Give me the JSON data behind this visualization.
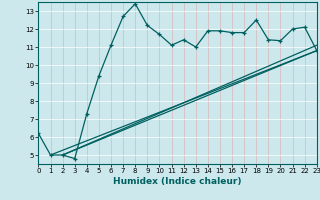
{
  "xlabel": "Humidex (Indice chaleur)",
  "bg_color": "#cce8ed",
  "line_color": "#006060",
  "grid_color": "#b0d8e0",
  "x_min": 0,
  "x_max": 23,
  "y_min": 4.5,
  "y_max": 13.5,
  "yticks": [
    5,
    6,
    7,
    8,
    9,
    10,
    11,
    12,
    13
  ],
  "xticks": [
    0,
    1,
    2,
    3,
    4,
    5,
    6,
    7,
    8,
    9,
    10,
    11,
    12,
    13,
    14,
    15,
    16,
    17,
    18,
    19,
    20,
    21,
    22,
    23
  ],
  "jagged_x": [
    0,
    1,
    2,
    3,
    4,
    5,
    6,
    7,
    8,
    9,
    10,
    11,
    12,
    13,
    14,
    15,
    16,
    17,
    18,
    19,
    20,
    21,
    22,
    23
  ],
  "jagged_y": [
    6.2,
    5.0,
    5.0,
    4.8,
    7.3,
    9.4,
    11.1,
    12.7,
    13.4,
    12.2,
    11.7,
    11.1,
    11.4,
    11.0,
    11.9,
    11.9,
    11.8,
    11.8,
    12.5,
    11.4,
    11.35,
    12.0,
    12.1,
    10.8
  ],
  "line1_x": [
    1,
    23
  ],
  "line1_y": [
    5.0,
    10.8
  ],
  "line2_x": [
    2,
    23
  ],
  "line2_y": [
    5.0,
    11.1
  ],
  "line3_x": [
    2,
    23
  ],
  "line3_y": [
    5.0,
    10.8
  ]
}
